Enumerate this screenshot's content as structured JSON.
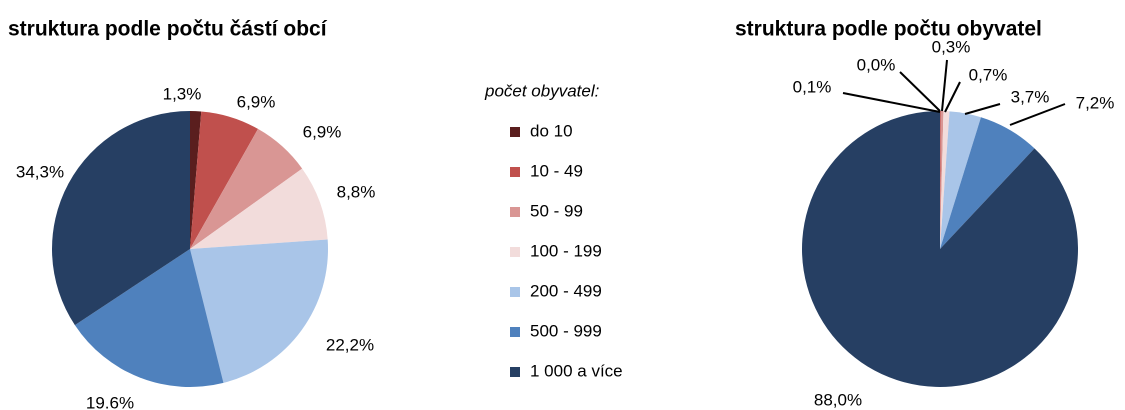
{
  "legend": {
    "title": "počet obyvatel:",
    "categories": [
      "do 10",
      "10 - 49",
      "50 - 99",
      "100 - 199",
      "200 - 499",
      "500 - 999",
      "1 000 a více"
    ],
    "colors": [
      "#5a1e1e",
      "#c0504d",
      "#d99694",
      "#f2dcdb",
      "#a9c5e8",
      "#4f81bd",
      "#263f63"
    ]
  },
  "chart_data": [
    {
      "type": "pie",
      "title": "struktura podle počtu částí obcí",
      "values": [
        1.3,
        6.9,
        6.9,
        8.8,
        22.2,
        19.6,
        34.3
      ],
      "value_labels": [
        "1,3%",
        "6,9%",
        "6,9%",
        "8,8%",
        "22,2%",
        "19.6%",
        "34,3%"
      ]
    },
    {
      "type": "pie",
      "title": "struktura podle počtu obyvatel",
      "values": [
        0.0,
        0.1,
        0.3,
        0.7,
        3.7,
        7.2,
        88.0
      ],
      "value_labels": [
        "0,0%",
        "0,1%",
        "0,3%",
        "0,7%",
        "3,7%",
        "7,2%",
        "88,0%"
      ]
    }
  ]
}
